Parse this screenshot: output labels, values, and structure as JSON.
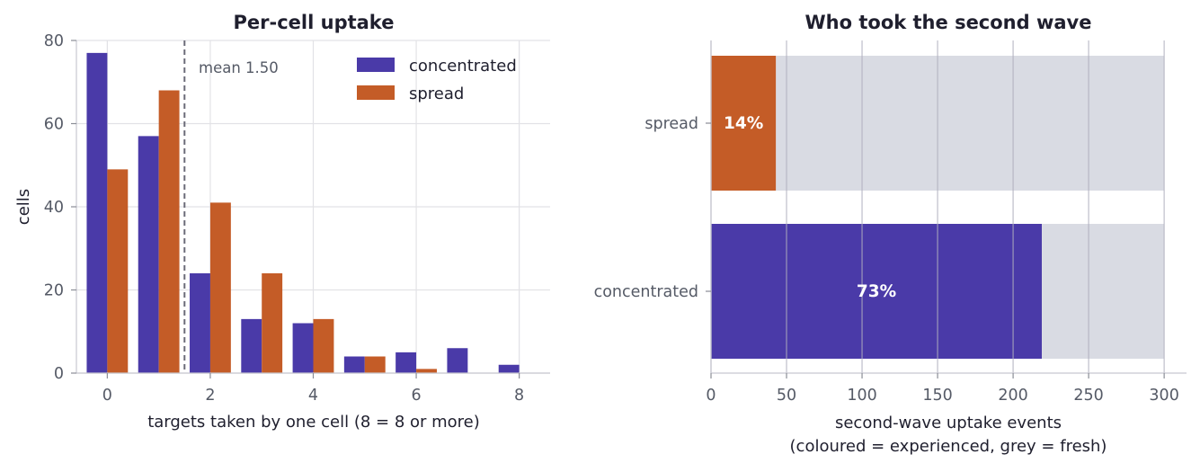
{
  "colors": {
    "concentrated": "#4a3aa8",
    "spread": "#c45c27",
    "fresh": "#d9dbe3"
  },
  "chart_data": [
    {
      "type": "bar",
      "title": "Per-cell uptake",
      "xlabel": "targets taken by one cell (8 = 8 or more)",
      "ylabel": "cells",
      "categories": [
        0,
        1,
        2,
        3,
        4,
        5,
        6,
        7,
        8
      ],
      "series": [
        {
          "name": "concentrated",
          "values": [
            77,
            57,
            24,
            13,
            12,
            4,
            5,
            6,
            2
          ]
        },
        {
          "name": "spread",
          "values": [
            49,
            68,
            41,
            24,
            13,
            4,
            1,
            0,
            0
          ]
        }
      ],
      "xticks": [
        0,
        2,
        4,
        6,
        8
      ],
      "yticks": [
        0,
        20,
        40,
        60,
        80
      ],
      "ylim": [
        0,
        80
      ],
      "xlim": [
        -0.6,
        8.6
      ],
      "mean": {
        "value": 1.5,
        "label": "mean 1.50"
      },
      "legend": "top-right",
      "grid": true
    },
    {
      "type": "bar",
      "orientation": "horizontal-stacked",
      "title": "Who took the second wave",
      "xlabel": "second-wave uptake events",
      "xlabel2": "(coloured = experienced, grey = fresh)",
      "categories": [
        "spread",
        "concentrated"
      ],
      "series": [
        {
          "key": "experienced",
          "values": [
            43,
            219
          ]
        },
        {
          "key": "fresh",
          "values": [
            257,
            81
          ]
        }
      ],
      "totals": [
        300,
        300
      ],
      "labels": [
        "14%",
        "73%"
      ],
      "xticks": [
        0,
        50,
        100,
        150,
        200,
        250,
        300
      ],
      "xlim": [
        0,
        300
      ],
      "grid": true
    }
  ]
}
